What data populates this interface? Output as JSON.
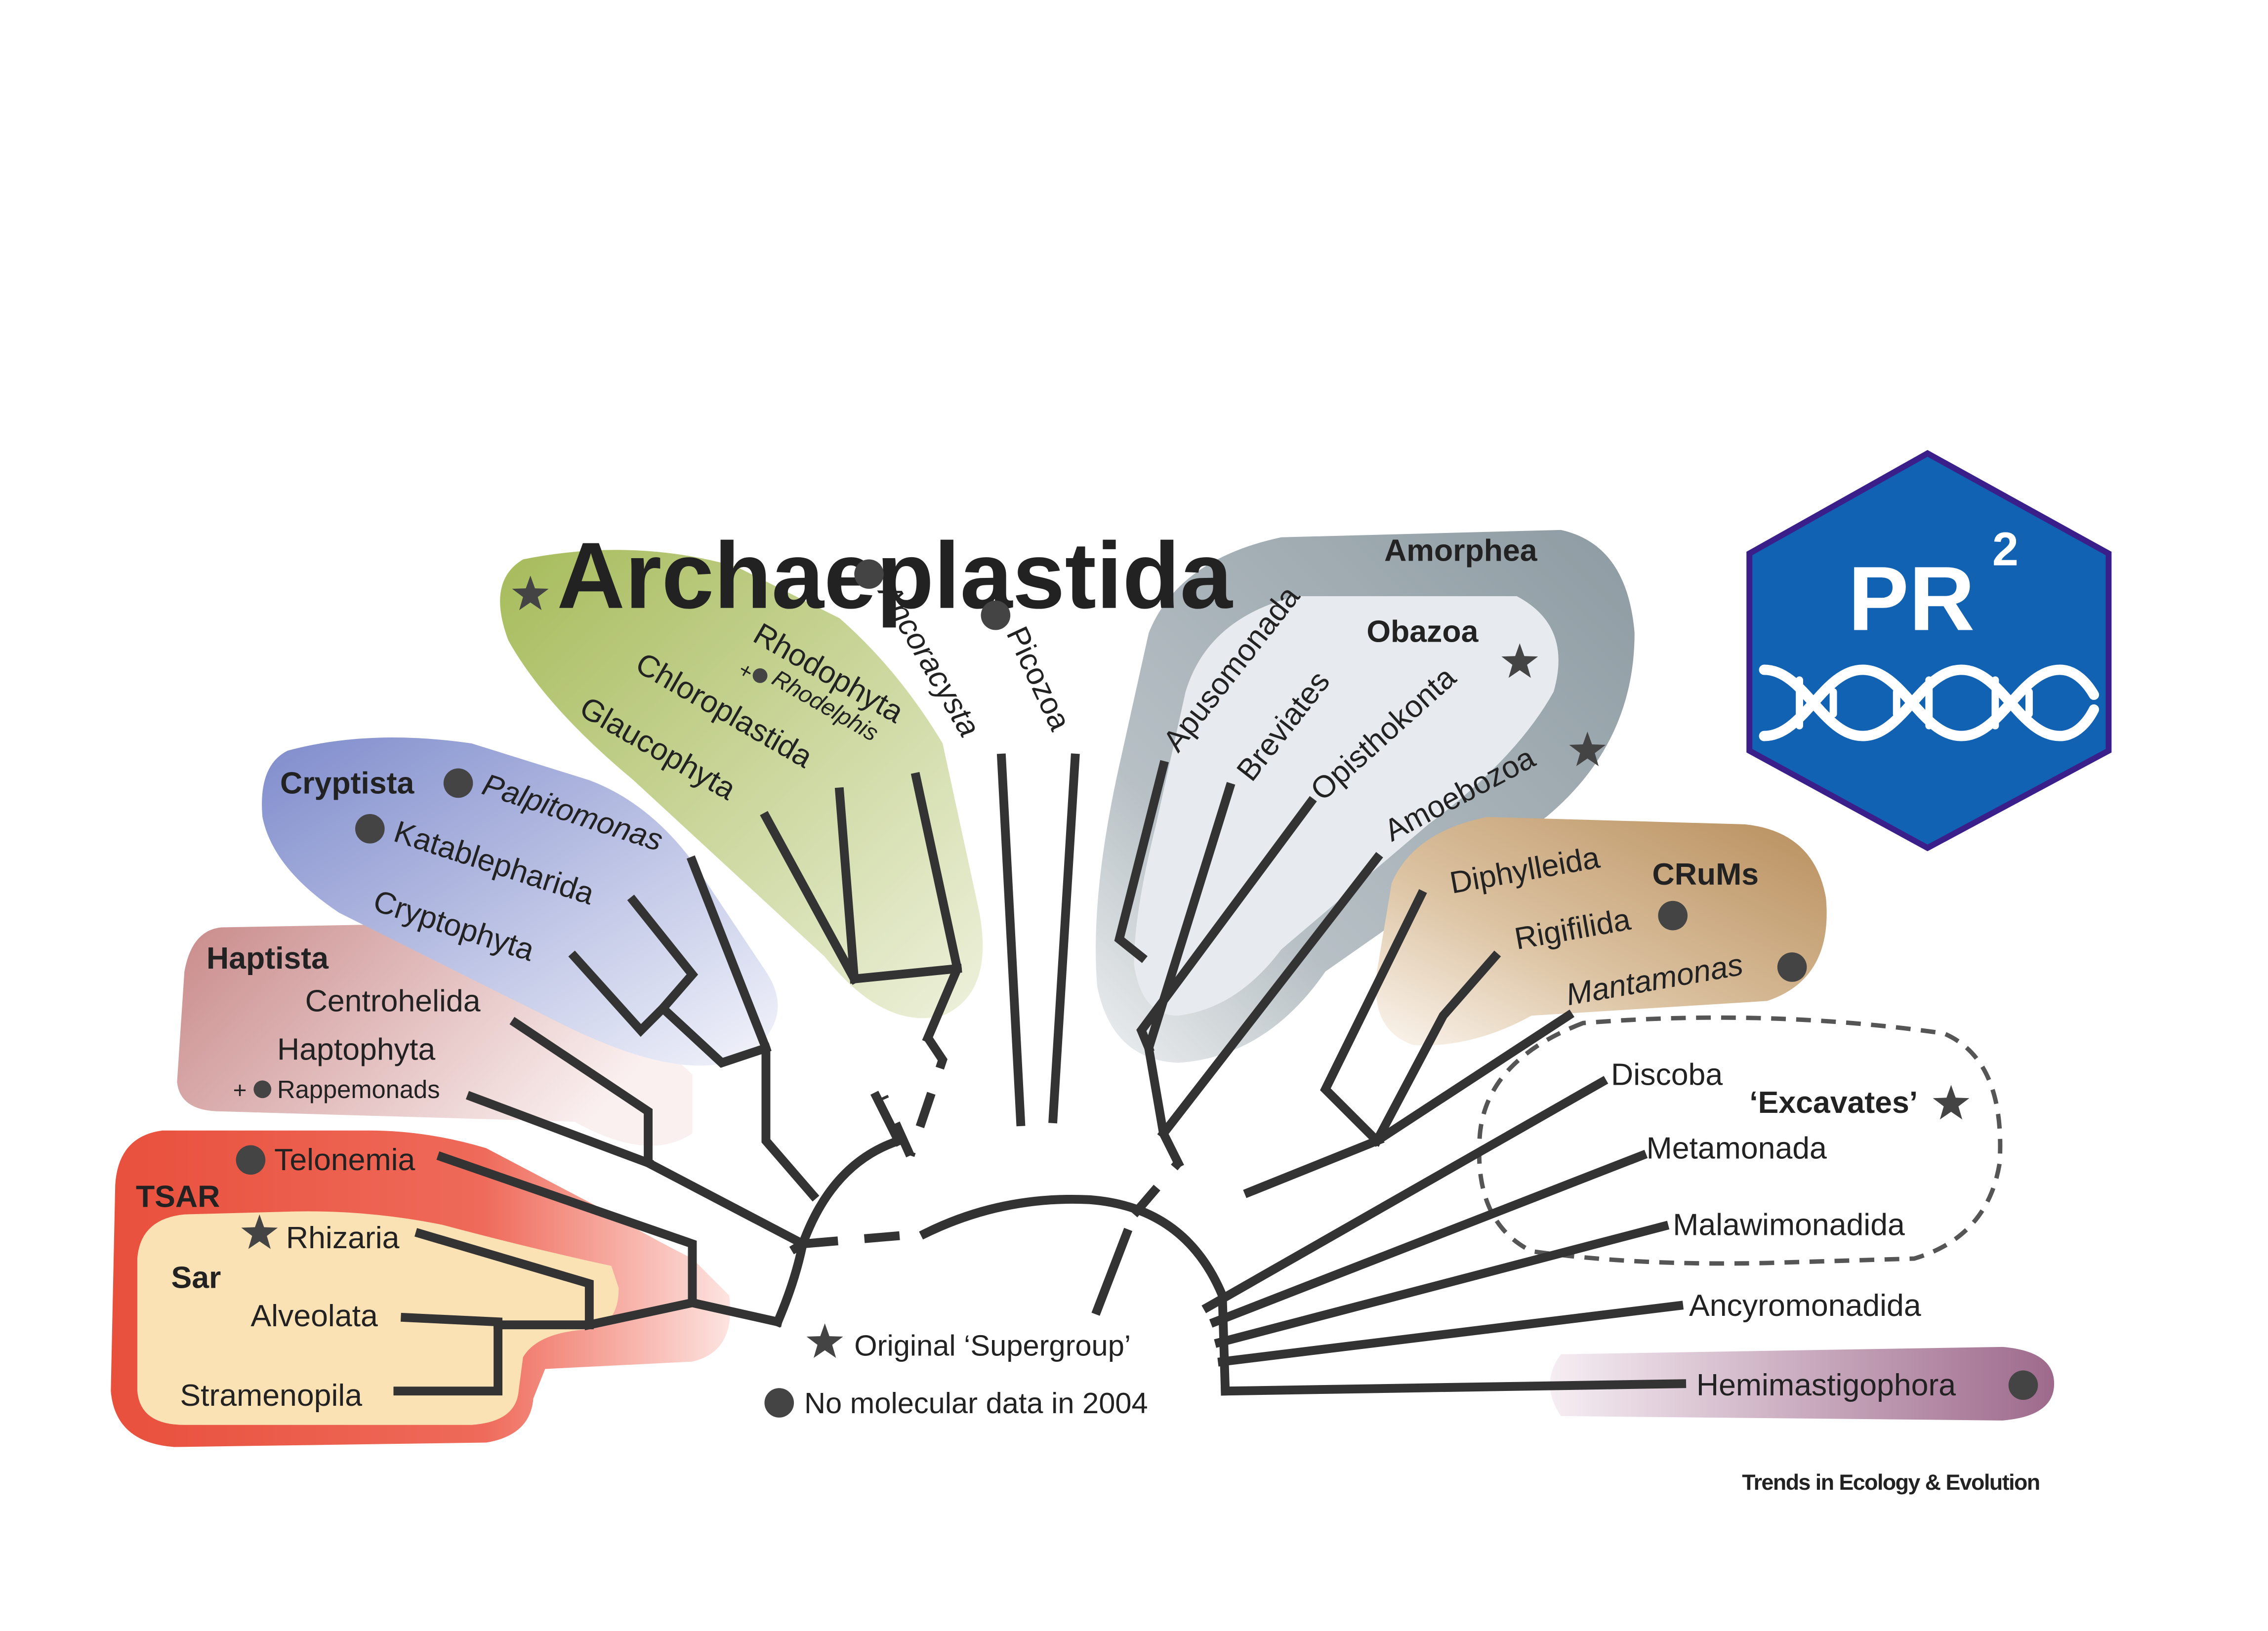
{
  "figure": {
    "clades": {
      "archaeplastida": "Archaeplastida",
      "rhodophyta": "Rhodophyta",
      "rhodelphis": "Rhodelphis",
      "chloroplastida": "Chloroplastida",
      "glaucophyta": "Glaucophyta",
      "ancoracysta": "Ancoracysta",
      "picozoa": "Picozoa",
      "cryptista": "Cryptista",
      "palpitomonas": "Palpitomonas",
      "katablepharida": "Katablepharida",
      "cryptophyta": "Cryptophyta",
      "haptista": "Haptista",
      "centrohelida": "Centrohelida",
      "haptophyta": "Haptophyta",
      "rappemonads": "Rappemonads",
      "tsar": "TSAR",
      "telonemia": "Telonemia",
      "sar": "Sar",
      "rhizaria": "Rhizaria",
      "alveolata": "Alveolata",
      "stramenopila": "Stramenopila",
      "amorphea": "Amorphea",
      "obazoa": "Obazoa",
      "apusomonada": "Apusomonada",
      "breviates": "Breviates",
      "opisthokonta": "Opisthokonta",
      "amoebozoa": "Amoebozoa",
      "crums": "CRuMs",
      "diphylleida": "Diphylleida",
      "rigifilida": "Rigifilida",
      "mantamonas": "Mantamonas",
      "excavates": "‘Excavates’",
      "discoba": "Discoba",
      "metamonada": "Metamonada",
      "malawimonadida": "Malawimonadida",
      "ancyromonadida": "Ancyromonadida",
      "hemimastigophora": "Hemimastigophora"
    },
    "plus": "+",
    "legend": {
      "star": "Original ‘Supergroup’",
      "dot": "No molecular data in 2004"
    },
    "credit": "Trends in Ecology & Evolution"
  },
  "logo": {
    "text": "PR",
    "superscript": "2"
  },
  "colors": {
    "archaeplastida": "#a6bb5a",
    "cryptista": "#7f8ccc",
    "haptista": "#c98a8a",
    "tsar": "#e8503c",
    "sar": "#fbe2b4",
    "amorphea": "#8d9ba2",
    "obazoa": "#e7eaee",
    "crums": "#b88e5c",
    "hemimastigophora": "#9e6a8c",
    "logo_fill": "#1262b4",
    "logo_border": "#3a1f8a",
    "glyph": "#444444"
  }
}
